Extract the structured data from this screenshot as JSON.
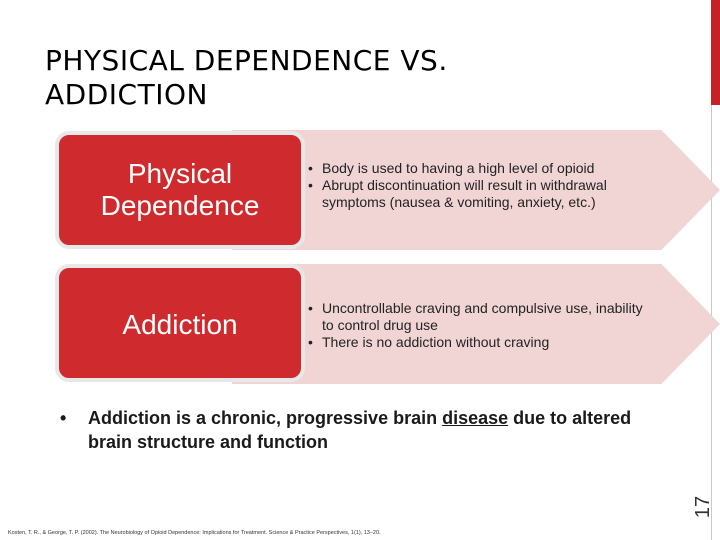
{
  "slide": {
    "title_line1": "PHYSICAL DEPENDENCE VS.",
    "title_line2": "ADDICTION",
    "number": "17"
  },
  "rows": [
    {
      "label": "Physical Dependence",
      "bullets": [
        "Body is used to having a high level of opioid",
        "Abrupt discontinuation will result in withdrawal symptoms (nausea & vomiting, anxiety, etc.)"
      ]
    },
    {
      "label": "Addiction",
      "bullets": [
        "Uncontrollable craving and compulsive use, inability to control drug use",
        "There is no addiction without craving"
      ]
    }
  ],
  "main_point": {
    "before": "Addiction is a chronic, progressive brain ",
    "underlined": "disease",
    "after": " due to altered brain structure and function"
  },
  "citation": "Kosten, T. R., & George, T. P. (2002). The Neurobiology of Opioid Dependence: Implications for Treatment. Science & Practice Perspectives, 1(1), 13–20.",
  "colors": {
    "accent_red": "#cf2a2e",
    "arrow_fill": "#f1d5d5"
  }
}
